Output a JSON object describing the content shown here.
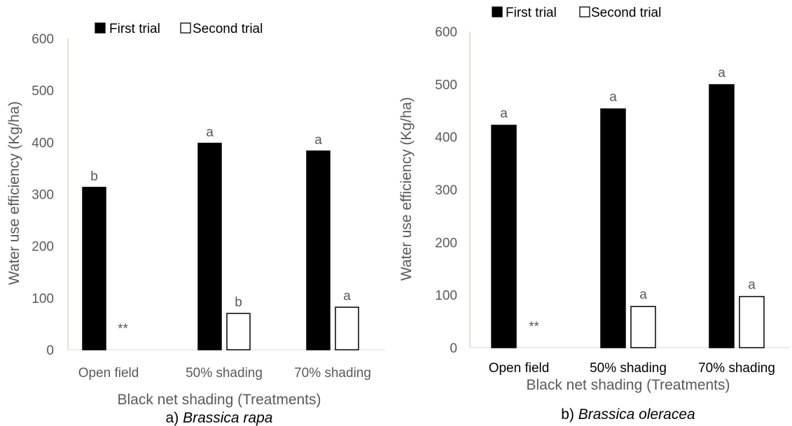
{
  "chart_data": [
    {
      "type": "bar",
      "caption": {
        "prefix": "a) ",
        "species": "Brassica rapa"
      },
      "xlabel": "Black net shading (Treatments)",
      "ylabel": "Water use efficiency (Kg/ha)",
      "ylim": [
        0,
        600
      ],
      "yticks": [
        0,
        100,
        200,
        300,
        400,
        500,
        600
      ],
      "grid": false,
      "legend_position": "top",
      "categories": [
        "Open field",
        "50% shading",
        "70% shading"
      ],
      "series": [
        {
          "name": "First trial",
          "color": "#000000",
          "values": [
            313,
            398,
            383
          ],
          "labels": [
            "b",
            "a",
            "a"
          ]
        },
        {
          "name": "Second trial",
          "color": "#ffffff",
          "values": [
            0,
            70,
            82
          ],
          "labels": [
            "**",
            "b",
            "a"
          ]
        }
      ]
    },
    {
      "type": "bar",
      "caption": {
        "prefix": "b) ",
        "species": "Brassica oleracea"
      },
      "xlabel": "Black net shading (Treatments)",
      "ylabel": "Water use efficiency (Kg/ha)",
      "ylim": [
        0,
        600
      ],
      "yticks": [
        0,
        100,
        200,
        300,
        400,
        500,
        600
      ],
      "grid": false,
      "legend_position": "top",
      "categories": [
        "Open field",
        "50% shading",
        "70% shading"
      ],
      "series": [
        {
          "name": "First trial",
          "color": "#000000",
          "values": [
            422,
            453,
            499
          ],
          "labels": [
            "a",
            "a",
            "a"
          ]
        },
        {
          "name": "Second trial",
          "color": "#ffffff",
          "values": [
            0,
            78,
            97
          ],
          "labels": [
            "**",
            "a",
            "a"
          ]
        }
      ]
    }
  ]
}
